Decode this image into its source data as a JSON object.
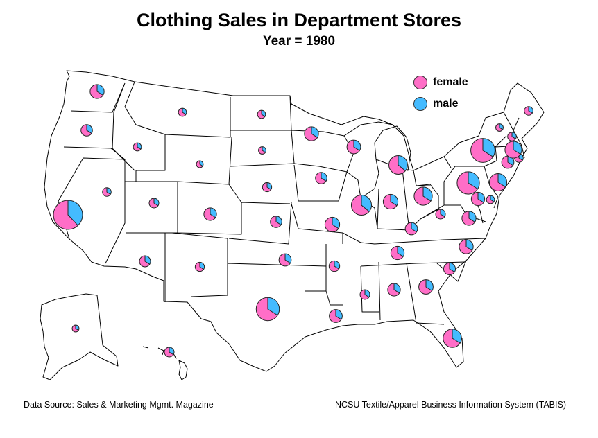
{
  "title": "Clothing Sales in Department Stores",
  "subtitle": "Year = 1980",
  "footer_left": "Data Source: Sales & Marketing Mgmt. Magazine",
  "footer_right": "NCSU Textile/Apparel Business Information System (TABIS)",
  "legend": [
    {
      "label": "female",
      "color": "#ff6ec7"
    },
    {
      "label": "male",
      "color": "#44bbff"
    }
  ],
  "colors": {
    "female": "#ff6ec7",
    "male": "#44bbff",
    "outline": "#000000"
  },
  "chart_data": {
    "type": "pie-map",
    "series_names": [
      "female",
      "male"
    ],
    "states": [
      {
        "state": "WA",
        "size": 2.1,
        "female": 0.66
      },
      {
        "state": "OR",
        "size": 1.4,
        "female": 0.66
      },
      {
        "state": "CA",
        "size": 9.0,
        "female": 0.62
      },
      {
        "state": "NV",
        "size": 0.8,
        "female": 0.66
      },
      {
        "state": "ID",
        "size": 0.7,
        "female": 0.66
      },
      {
        "state": "MT",
        "size": 0.7,
        "female": 0.66
      },
      {
        "state": "WY",
        "size": 0.5,
        "female": 0.66
      },
      {
        "state": "UT",
        "size": 1.0,
        "female": 0.66
      },
      {
        "state": "AZ",
        "size": 1.3,
        "female": 0.66
      },
      {
        "state": "CO",
        "size": 1.7,
        "female": 0.66
      },
      {
        "state": "NM",
        "size": 0.9,
        "female": 0.66
      },
      {
        "state": "ND",
        "size": 0.7,
        "female": 0.66
      },
      {
        "state": "SD",
        "size": 0.6,
        "female": 0.66
      },
      {
        "state": "NE",
        "size": 0.9,
        "female": 0.66
      },
      {
        "state": "KS",
        "size": 1.4,
        "female": 0.66
      },
      {
        "state": "OK",
        "size": 1.6,
        "female": 0.66
      },
      {
        "state": "TX",
        "size": 5.7,
        "female": 0.66
      },
      {
        "state": "MN",
        "size": 2.1,
        "female": 0.66
      },
      {
        "state": "IA",
        "size": 1.4,
        "female": 0.66
      },
      {
        "state": "MO",
        "size": 2.3,
        "female": 0.66
      },
      {
        "state": "AR",
        "size": 1.2,
        "female": 0.66
      },
      {
        "state": "LA",
        "size": 1.8,
        "female": 0.66
      },
      {
        "state": "WI",
        "size": 2.0,
        "female": 0.66
      },
      {
        "state": "IL",
        "size": 4.3,
        "female": 0.64
      },
      {
        "state": "MI",
        "size": 3.7,
        "female": 0.64
      },
      {
        "state": "IN",
        "size": 2.3,
        "female": 0.66
      },
      {
        "state": "OH",
        "size": 3.5,
        "female": 0.66
      },
      {
        "state": "KY",
        "size": 1.6,
        "female": 0.66
      },
      {
        "state": "TN",
        "size": 1.9,
        "female": 0.66
      },
      {
        "state": "MS",
        "size": 1.0,
        "female": 0.66
      },
      {
        "state": "AL",
        "size": 1.7,
        "female": 0.66
      },
      {
        "state": "GA",
        "size": 2.2,
        "female": 0.66
      },
      {
        "state": "FL",
        "size": 3.6,
        "female": 0.66
      },
      {
        "state": "SC",
        "size": 1.5,
        "female": 0.66
      },
      {
        "state": "NC",
        "size": 2.1,
        "female": 0.66
      },
      {
        "state": "VA",
        "size": 2.1,
        "female": 0.66
      },
      {
        "state": "WV",
        "size": 1.0,
        "female": 0.66
      },
      {
        "state": "PA",
        "size": 5.3,
        "female": 0.66
      },
      {
        "state": "NY",
        "size": 6.2,
        "female": 0.66
      },
      {
        "state": "MD",
        "size": 1.9,
        "female": 0.66
      },
      {
        "state": "DE",
        "size": 0.7,
        "female": 0.66
      },
      {
        "state": "NJ",
        "size": 3.2,
        "female": 0.66
      },
      {
        "state": "CT",
        "size": 1.6,
        "female": 0.66
      },
      {
        "state": "RI",
        "size": 0.8,
        "female": 0.66
      },
      {
        "state": "MA",
        "size": 3.0,
        "female": 0.66
      },
      {
        "state": "VT",
        "size": 0.6,
        "female": 0.66
      },
      {
        "state": "NH",
        "size": 0.8,
        "female": 0.66
      },
      {
        "state": "ME",
        "size": 0.8,
        "female": 0.66
      },
      {
        "state": "AK",
        "size": 0.5,
        "female": 0.66
      },
      {
        "state": "HI",
        "size": 1.0,
        "female": 0.66
      }
    ]
  }
}
